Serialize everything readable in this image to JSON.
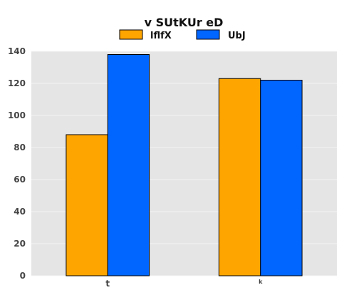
{
  "chart_data": {
    "type": "bar",
    "title": "v SUtKUr eD",
    "xlabel": "",
    "ylabel": "",
    "categories": [
      "t",
      "k"
    ],
    "series": [
      {
        "name": "lflfX",
        "values": [
          88,
          123
        ],
        "color": "#FFA500"
      },
      {
        "name": "UbJ",
        "values": [
          138,
          122
        ],
        "color": "#0066FF"
      }
    ],
    "ylim": [
      0,
      140
    ],
    "yticks": [
      "0",
      "20",
      "40",
      "60",
      "80",
      "100",
      "120",
      "140"
    ],
    "grid": true,
    "legend_position": "top-center",
    "background": "#E5E5E5",
    "bar_edge_color": "#000000"
  }
}
